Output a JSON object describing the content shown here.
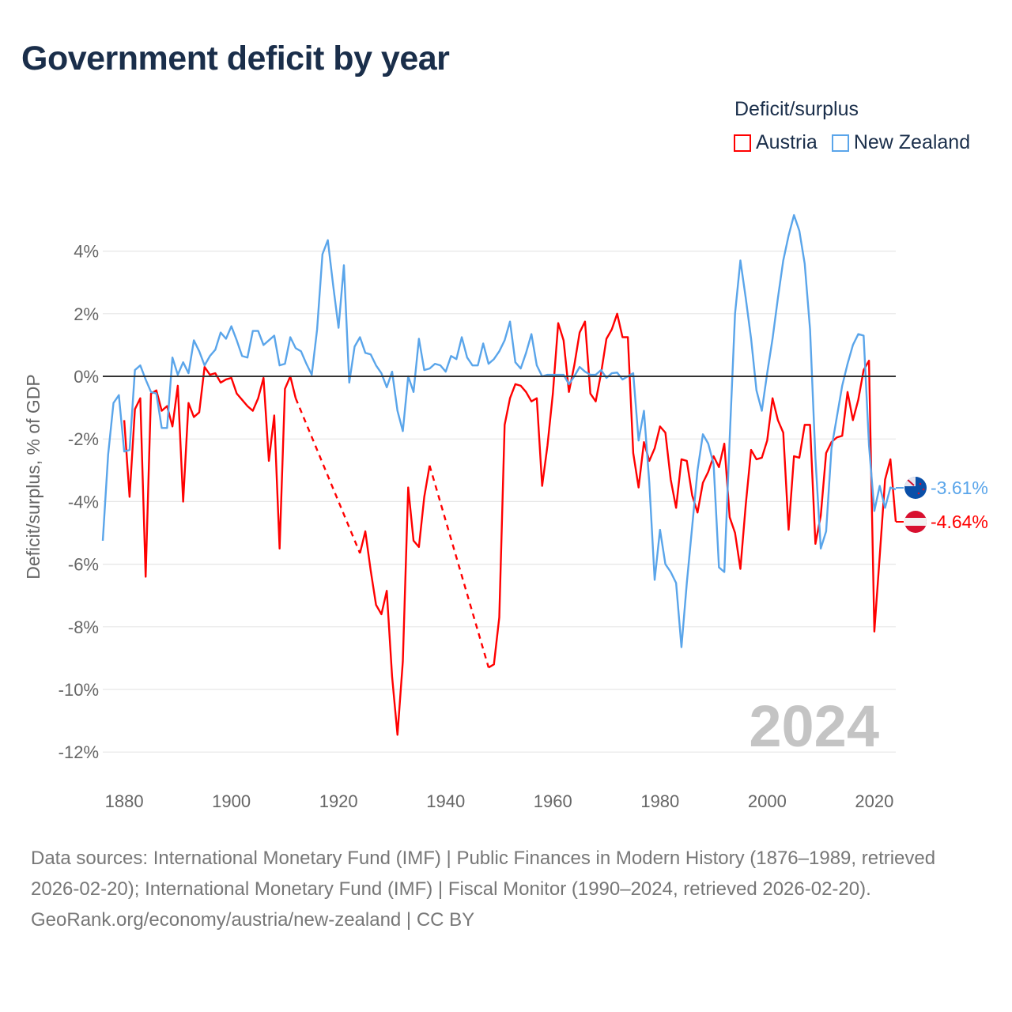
{
  "title": "Government deficit by year",
  "legend": {
    "title": "Deficit/surplus",
    "items": [
      {
        "label": "Austria",
        "color": "#ff0000"
      },
      {
        "label": "New Zealand",
        "color": "#5aa5ea"
      }
    ]
  },
  "year_watermark": "2024",
  "end_labels": [
    {
      "country": "New Zealand",
      "text": "-3.61%",
      "icon": "new-zealand-flag-icon"
    },
    {
      "country": "Austria",
      "text": "-4.64%",
      "icon": "austria-flag-icon"
    }
  ],
  "footer": {
    "sources": "Data sources: International Monetary Fund (IMF) | Public Finances in Modern History (1876–1989, retrieved 2026-02-20); International Monetary Fund (IMF) | Fiscal Monitor (1990–2024, retrieved 2026-02-20).",
    "credit": "GeoRank.org/economy/austria/new-zealand | CC BY"
  },
  "chart_data": {
    "type": "line",
    "title": "Government deficit by year",
    "xlabel": "",
    "ylabel": "Deficit/surplus, % of GDP",
    "xlim": [
      1876,
      2024
    ],
    "ylim": [
      -12,
      4
    ],
    "x_ticks": [
      1880,
      1900,
      1920,
      1940,
      1960,
      1980,
      2000,
      2020
    ],
    "y_ticks": [
      4,
      2,
      0,
      -2,
      -4,
      -6,
      -8,
      -10,
      -12
    ],
    "y_tick_labels": [
      "4%",
      "2%",
      "0%",
      "-2%",
      "-4%",
      "-6%",
      "-8%",
      "-10%",
      "-12%"
    ],
    "grid": true,
    "legend_position": "top-right",
    "x_start": 1876,
    "series": [
      {
        "name": "Austria",
        "color": "#ff0000",
        "values": [
          null,
          null,
          null,
          null,
          -1.4,
          -3.85,
          -1.05,
          -0.7,
          -6.4,
          -0.55,
          -0.45,
          -1.1,
          -0.95,
          -1.6,
          -0.3,
          -4.0,
          -0.85,
          -1.3,
          -1.15,
          0.3,
          0.05,
          0.1,
          -0.2,
          -0.1,
          -0.05,
          -0.55,
          -0.75,
          -0.95,
          -1.1,
          -0.7,
          -0.05,
          -2.7,
          -1.25,
          -5.5,
          -0.4,
          0.0,
          -0.7,
          null,
          null,
          null,
          null,
          null,
          null,
          null,
          null,
          null,
          null,
          null,
          -5.65,
          -4.95,
          -6.2,
          -7.3,
          -7.6,
          -6.85,
          -9.6,
          -11.45,
          -9.1,
          -3.55,
          -5.25,
          -5.45,
          -3.85,
          -2.85,
          null,
          null,
          null,
          null,
          null,
          null,
          null,
          null,
          null,
          null,
          -9.3,
          -9.2,
          -7.7,
          -1.55,
          -0.7,
          -0.25,
          -0.3,
          -0.5,
          -0.8,
          -0.7,
          -3.5,
          -2.2,
          -0.55,
          1.7,
          1.15,
          -0.5,
          0.35,
          1.4,
          1.75,
          -0.55,
          -0.8,
          0.1,
          1.2,
          1.5,
          2.0,
          1.25,
          1.25,
          -2.45,
          -3.55,
          -2.1,
          -2.7,
          -2.3,
          -1.6,
          -1.8,
          -3.3,
          -4.2,
          -2.65,
          -2.7,
          -3.8,
          -4.35,
          -3.4,
          -3.05,
          -2.55,
          -2.9,
          -2.15,
          -4.5,
          -5.0,
          -6.15,
          -4.1,
          -2.35,
          -2.65,
          -2.6,
          -2.05,
          -0.7,
          -1.4,
          -1.8,
          -4.9,
          -2.55,
          -2.6,
          -1.55,
          -1.55,
          -5.35,
          -4.45,
          -2.45,
          -2.1,
          -1.95,
          -1.9,
          -0.5,
          -1.4,
          -0.75,
          0.2,
          0.5,
          -8.15,
          -5.75,
          -3.3,
          -2.65,
          -4.64
        ]
      },
      {
        "name": "New Zealand",
        "color": "#5aa5ea",
        "values": [
          -5.25,
          -2.5,
          -0.85,
          -0.6,
          -2.4,
          -2.35,
          0.2,
          0.35,
          -0.1,
          -0.5,
          -0.55,
          -1.65,
          -1.65,
          0.6,
          0.05,
          0.45,
          0.1,
          1.15,
          0.8,
          0.35,
          0.65,
          0.85,
          1.4,
          1.2,
          1.6,
          1.15,
          0.65,
          0.6,
          1.45,
          1.45,
          1.0,
          1.15,
          1.3,
          0.35,
          0.4,
          1.25,
          0.9,
          0.8,
          0.4,
          0.05,
          1.5,
          3.9,
          4.35,
          2.9,
          1.55,
          3.55,
          -0.2,
          0.95,
          1.25,
          0.75,
          0.7,
          0.35,
          0.1,
          -0.35,
          0.15,
          -1.1,
          -1.75,
          0.0,
          -0.5,
          1.2,
          0.2,
          0.25,
          0.4,
          0.35,
          0.15,
          0.65,
          0.55,
          1.25,
          0.6,
          0.35,
          0.35,
          1.05,
          0.4,
          0.55,
          0.8,
          1.15,
          1.75,
          0.45,
          0.25,
          0.75,
          1.35,
          0.35,
          0.0,
          0.05,
          0.05,
          0.05,
          0.05,
          -0.25,
          0.0,
          0.3,
          0.15,
          0.05,
          0.05,
          0.2,
          -0.05,
          0.1,
          0.12,
          -0.1,
          0.0,
          0.1,
          -2.05,
          -1.1,
          -3.4,
          -6.5,
          -4.9,
          -6.0,
          -6.25,
          -6.6,
          -8.65,
          -6.6,
          -4.8,
          -3.0,
          -1.85,
          -2.15,
          -2.8,
          -6.1,
          -6.25,
          -2.0,
          2.0,
          3.7,
          2.5,
          1.2,
          -0.45,
          -1.1,
          0.1,
          1.2,
          2.5,
          3.7,
          4.5,
          5.15,
          4.65,
          3.6,
          1.5,
          -2.6,
          -5.5,
          -4.95,
          -2.3,
          -1.3,
          -0.3,
          0.4,
          1.0,
          1.35,
          1.3,
          -2.2,
          -4.3,
          -3.5,
          -4.2,
          -3.55,
          -3.61
        ]
      }
    ]
  }
}
